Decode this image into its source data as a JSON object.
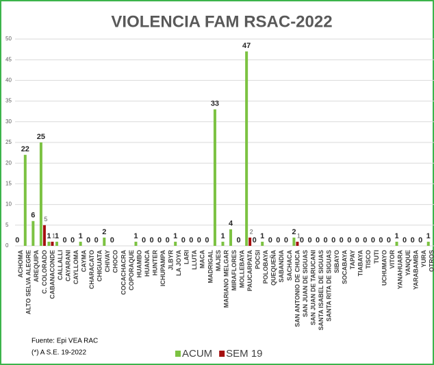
{
  "chart_data": {
    "type": "bar",
    "title": "VIOLENCIA FAM RSAC-2022",
    "categories": [
      "ACHOMA",
      "ALTO SELVA ALEGRE",
      "AREQUIPA",
      "C. COLORADO",
      "CABANACONDE",
      "CALLALLI",
      "CAYARANI",
      "CAYLLOMA",
      "CAYMA",
      "CHARACATO",
      "CHIGUATA",
      "CHIVAY",
      "CHOCO",
      "COCACHACRA",
      "COPORAQUE",
      "HUAMBO",
      "HUANCA",
      "HUNTER",
      "ICHUPAMPA",
      "JLBYR",
      "LA JOYA",
      "LARI",
      "LLUTA",
      "MACA",
      "MADRIGAL",
      "MAJES",
      "MARIANO MELGAR",
      "MIRAFLORES",
      "MOLLEBAYA",
      "PAUCARPATA",
      "POCSI",
      "POLOBAYA",
      "QUEQUEÑA",
      "SABANDIA",
      "SACHACA",
      "SAN ANTONIO DE CHUCA",
      "SAN JUAN DE SIGUAS",
      "SAN JUAN DE TARUCANI",
      "SANTA ISABEL DE SIGUAS",
      "SANTA RITA DE SIGUAS",
      "SIBAYO",
      "SOCABAYA",
      "TAPAY",
      "TIABAYA",
      "TISCO",
      "TUTI",
      "UCHUMAYO",
      "VITOR",
      "YANAHUARA",
      "YANQUE",
      "YARABAMBA",
      "YURA",
      "OTROS"
    ],
    "series": [
      {
        "name": "ACUM",
        "color": "#7cc242",
        "values": [
          0,
          22,
          6,
          25,
          1,
          1,
          0,
          0,
          1,
          0,
          0,
          2,
          0,
          0,
          0,
          1,
          0,
          0,
          0,
          0,
          1,
          0,
          0,
          0,
          0,
          33,
          1,
          4,
          0,
          47,
          0,
          1,
          0,
          0,
          0,
          2,
          0,
          0,
          0,
          0,
          0,
          0,
          0,
          0,
          0,
          0,
          0,
          0,
          1,
          0,
          0,
          0,
          1
        ],
        "value_labels": [
          "0",
          "22",
          "6",
          "25",
          "1",
          "1",
          "0",
          "0",
          "1",
          "0",
          "0",
          "2",
          "0",
          null,
          null,
          "1",
          "0",
          "0",
          "0",
          "0",
          "1",
          "0",
          "0",
          "0",
          "0",
          "33",
          "1",
          "4",
          "0",
          "47",
          "0",
          "1",
          "0",
          "0",
          "0",
          "2",
          "0",
          "0",
          "0",
          "0",
          "0",
          "0",
          "0",
          "0",
          "0",
          "0",
          "0",
          "0",
          "1",
          "0",
          "0",
          "0",
          "1"
        ]
      },
      {
        "name": "SEM 19",
        "color": "#a50f0f",
        "values": [
          0,
          0,
          0,
          5,
          1,
          0,
          0,
          0,
          0,
          0,
          0,
          0,
          0,
          0,
          0,
          0,
          0,
          0,
          0,
          0,
          0,
          0,
          0,
          0,
          0,
          0,
          0,
          0,
          0,
          2,
          0,
          0,
          0,
          0,
          0,
          1,
          0,
          0,
          0,
          0,
          0,
          0,
          0,
          0,
          0,
          0,
          0,
          0,
          0,
          0,
          0,
          0,
          0
        ],
        "value_labels": [
          null,
          null,
          null,
          "5",
          "1",
          null,
          null,
          null,
          null,
          null,
          null,
          null,
          null,
          null,
          null,
          null,
          null,
          null,
          null,
          null,
          null,
          null,
          null,
          null,
          null,
          null,
          null,
          null,
          null,
          "2",
          null,
          null,
          null,
          null,
          null,
          "1",
          null,
          null,
          null,
          null,
          null,
          null,
          null,
          null,
          null,
          null,
          null,
          null,
          null,
          null,
          null,
          null,
          null
        ]
      }
    ],
    "ylim": [
      0,
      50
    ],
    "yticks": [
      0,
      5,
      10,
      15,
      20,
      25,
      30,
      35,
      40,
      45,
      50
    ],
    "grid": true,
    "notes": [
      "Fuente: Epi VEA RAC",
      "(*) A S.E. 19-2022"
    ]
  }
}
